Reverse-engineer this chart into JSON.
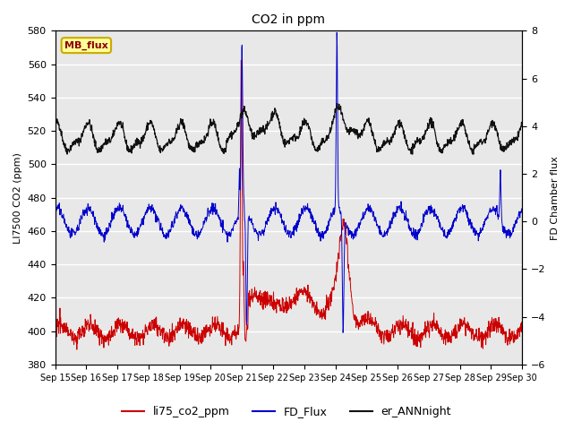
{
  "title": "CO2 in ppm",
  "ylabel_left": "LI7500 CO2 (ppm)",
  "ylabel_right": "FD Chamber flux",
  "annotation_text": "MB_flux",
  "annotation_color": "#8B0000",
  "annotation_bg": "#FFFF99",
  "annotation_border": "#CCAA00",
  "left_ylim": [
    380,
    580
  ],
  "right_ylim": [
    -6,
    8
  ],
  "xtick_labels": [
    "Sep 15",
    "Sep 16",
    "Sep 17",
    "Sep 18",
    "Sep 19",
    "Sep 20",
    "Sep 21",
    "Sep 22",
    "Sep 23",
    "Sep 24",
    "Sep 25",
    "Sep 26",
    "Sep 27",
    "Sep 28",
    "Sep 29",
    "Sep 30"
  ],
  "bg_color": "#E8E8E8",
  "grid_color": "white",
  "line_colors": {
    "li75": "#CC0000",
    "FD": "#0000CC",
    "er": "#111111"
  },
  "line_widths": {
    "li75": 0.7,
    "FD": 0.7,
    "er": 0.9
  },
  "legend_labels": [
    "li75_co2_ppm",
    "FD_Flux",
    "er_ANNnight"
  ]
}
